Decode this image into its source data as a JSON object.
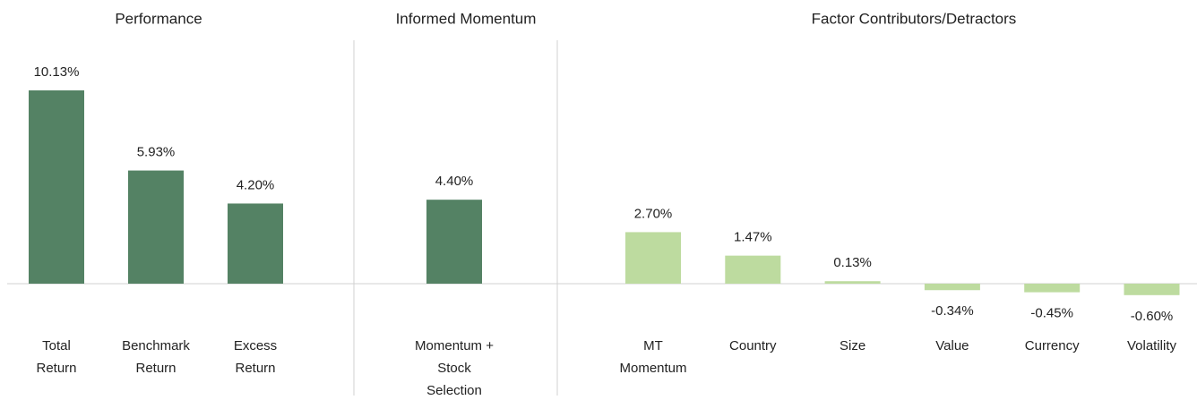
{
  "chart_data": [
    {
      "type": "bar",
      "title": "Performance",
      "categories": [
        [
          "Total",
          "Return"
        ],
        [
          "Benchmark",
          "Return"
        ],
        [
          "Excess",
          "Return"
        ]
      ],
      "values": [
        10.13,
        5.93,
        4.2
      ],
      "value_labels": [
        "10.13%",
        "5.93%",
        "4.20%"
      ],
      "color": "#548264"
    },
    {
      "type": "bar",
      "title": "Informed Momentum",
      "categories": [
        [
          "Momentum +",
          "Stock",
          "Selection"
        ]
      ],
      "values": [
        4.4
      ],
      "value_labels": [
        "4.40%"
      ],
      "color": "#548264"
    },
    {
      "type": "bar",
      "title": "Factor Contributors/Detractors",
      "categories": [
        [
          "MT",
          "Momentum"
        ],
        [
          "Country"
        ],
        [
          "Size"
        ],
        [
          "Value"
        ],
        [
          "Currency"
        ],
        [
          "Volatility"
        ]
      ],
      "values": [
        2.7,
        1.47,
        0.13,
        -0.34,
        -0.45,
        -0.6
      ],
      "value_labels": [
        "2.70%",
        "1.47%",
        "0.13%",
        "-0.34%",
        "-0.45%",
        "-0.60%"
      ],
      "color": "#bddb9f"
    }
  ]
}
